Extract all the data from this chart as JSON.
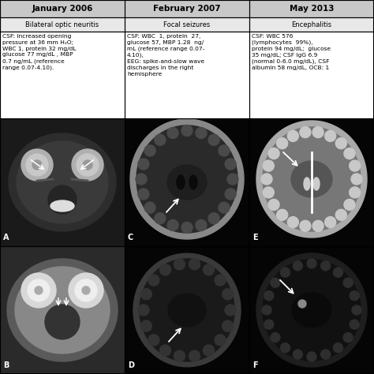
{
  "col1_header": "January 2006",
  "col2_header": "February 2007",
  "col3_header": "May 2013",
  "col1_subheader": "Bilateral optic neuritis",
  "col2_subheader": "Focal seizures",
  "col3_subheader": "Encephalitis",
  "col1_text": "CSF: increased opening\npressure at 36 mm H₂O;\nWBC 1, protein 32 mg/dL\nglucose 77 mg/dL , MBP\n0.7 ng/mL (reference\nrange 0.07-4.10).",
  "col2_text": "CSF: WBC  1, protein  27,\nglucose 57, MBP 1.28  ng/\nmL (reference range 0.07-\n4.10),\nEEG: spike-and-slow wave\ndischarges in the right\nhemisphere",
  "col3_text": "CSF: WBC 576\n(lymphocytes  99%),\nprotein 94 mg/dL;  glucose\n35 mg/dL; CSF IgG 6.9\n(normal 0-6.0 mg/dL), CSF\nalbumin 58 mg/dL, OCB: 1",
  "bg_color": "#ffffff",
  "header_bg": "#c8c8c8",
  "subhdr_bg": "#e8e8e8",
  "text_bg": "#ffffff",
  "img_bg": "#111111",
  "border_color": "#000000"
}
